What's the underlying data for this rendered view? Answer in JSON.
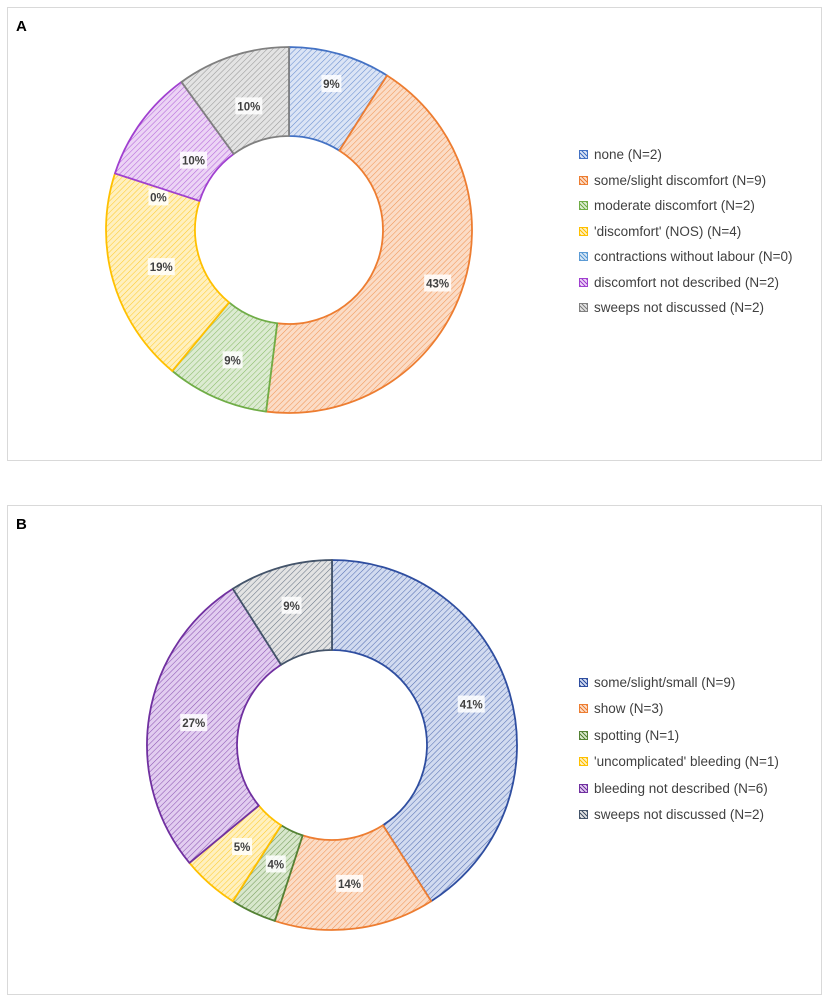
{
  "chart_data": [
    {
      "type": "pie",
      "variant": "donut",
      "panel_label": "A",
      "categories": [
        "none (N=2)",
        "some/slight discomfort (N=9)",
        "moderate discomfort (N=2)",
        "'discomfort' (NOS) (N=4)",
        "contractions without labour (N=0)",
        "discomfort not described (N=2)",
        "sweeps not discussed (N=2)"
      ],
      "values": [
        9,
        43,
        9,
        19,
        0,
        10,
        10
      ],
      "data_labels": [
        "9%",
        "43%",
        "9%",
        "19%",
        "0%",
        "10%",
        "10%"
      ],
      "colors": [
        "#4472c4",
        "#ed7d31",
        "#70ad47",
        "#ffc000",
        "#5b9bd5",
        "#a040d0",
        "#808080"
      ],
      "fills": [
        "#dbe4f5",
        "#fbdcc6",
        "#dcebd2",
        "#fff0bf",
        "#d6e6f5",
        "#ecd4f5",
        "#e3e3e3"
      ],
      "legend_position": "right"
    },
    {
      "type": "pie",
      "variant": "donut",
      "panel_label": "B",
      "categories": [
        "some/slight/small (N=9)",
        "show (N=3)",
        "spotting (N=1)",
        "'uncomplicated' bleeding (N=1)",
        "bleeding not described (N=6)",
        "sweeps not discussed (N=2)"
      ],
      "values": [
        41,
        14,
        4,
        5,
        27,
        9
      ],
      "data_labels": [
        "41%",
        "14%",
        "4%",
        "5%",
        "27%",
        "9%"
      ],
      "colors": [
        "#2f4ea0",
        "#ed7d31",
        "#548235",
        "#ffc000",
        "#7030a0",
        "#44546a"
      ],
      "fills": [
        "#d2dbf0",
        "#fbdcc6",
        "#d8e7cc",
        "#fff0bf",
        "#e2cdf0",
        "#e3e3e3"
      ],
      "legend_position": "right"
    }
  ]
}
